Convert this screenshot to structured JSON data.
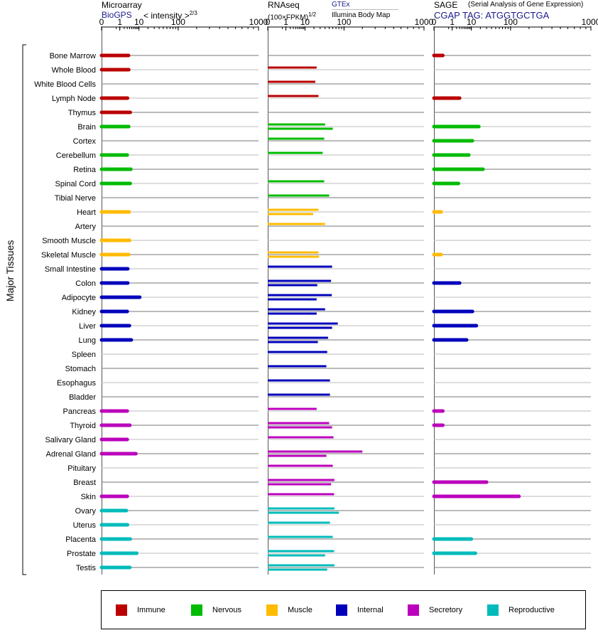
{
  "panels": {
    "microarray": {
      "title": "Microarray",
      "source": "BioGPS",
      "metric": "< intensity >",
      "metric_exp": "2/3"
    },
    "rnaseq": {
      "title": "RNAseq",
      "metric": "(100×FPKM)",
      "metric_exp": "1/2",
      "source_top": "GTEx",
      "source_bottom": "Illumina Body Map"
    },
    "sage": {
      "title": "SAGE",
      "subtitle": "(Serial Analysis of Gene Expression)",
      "tag": "CGAP TAG: ATGGTGCTGA"
    }
  },
  "y_axis_label": "Major Tissues",
  "legend": [
    {
      "label": "Immune",
      "color": "#bb0000"
    },
    {
      "label": "Nervous",
      "color": "#00bb00"
    },
    {
      "label": "Muscle",
      "color": "#ffbb00"
    },
    {
      "label": "Internal",
      "color": "#0000bb"
    },
    {
      "label": "Secretory",
      "color": "#bb00bb"
    },
    {
      "label": "Reproductive",
      "color": "#00bbbb"
    }
  ],
  "chart_data": {
    "type": "bar",
    "orientation": "horizontal",
    "x_scale": "power (shared tick values)",
    "x_ticks": [
      "0",
      "1",
      "10",
      "100",
      "1000"
    ],
    "categories": [
      "Bone Marrow",
      "Whole Blood",
      "White Blood Cells",
      "Lymph Node",
      "Thymus",
      "Brain",
      "Cortex",
      "Cerebellum",
      "Retina",
      "Spinal Cord",
      "Tibial Nerve",
      "Heart",
      "Artery",
      "Smooth Muscle",
      "Skeletal Muscle",
      "Small Intestine",
      "Colon",
      "Adipocyte",
      "Kidney",
      "Liver",
      "Lung",
      "Spleen",
      "Stomach",
      "Esophagus",
      "Bladder",
      "Pancreas",
      "Thyroid",
      "Salivary Gland",
      "Adrenal Gland",
      "Pituitary",
      "Breast",
      "Skin",
      "Ovary",
      "Uterus",
      "Placenta",
      "Prostate",
      "Testis"
    ],
    "systems": [
      "Immune",
      "Immune",
      "Immune",
      "Immune",
      "Immune",
      "Nervous",
      "Nervous",
      "Nervous",
      "Nervous",
      "Nervous",
      "Nervous",
      "Muscle",
      "Muscle",
      "Muscle",
      "Muscle",
      "Internal",
      "Internal",
      "Internal",
      "Internal",
      "Internal",
      "Internal",
      "Internal",
      "Internal",
      "Internal",
      "Internal",
      "Secretory",
      "Secretory",
      "Secretory",
      "Secretory",
      "Secretory",
      "Secretory",
      "Secretory",
      "Reproductive",
      "Reproductive",
      "Reproductive",
      "Reproductive",
      "Reproductive"
    ],
    "microarray": [
      3.5,
      3.6,
      null,
      3.1,
      4.3,
      3.6,
      null,
      3.0,
      4.6,
      4.3,
      null,
      3.8,
      null,
      4.0,
      3.6,
      3.2,
      3.2,
      10.7,
      3.0,
      3.9,
      4.8,
      null,
      null,
      null,
      null,
      3.0,
      4.1,
      3.0,
      7.6,
      null,
      null,
      3.0,
      2.7,
      3.1,
      4.3,
      8.2,
      4.1
    ],
    "rnaseq_gtex": [
      null,
      24,
      22,
      27,
      null,
      40,
      38,
      35,
      null,
      38,
      50,
      27,
      40,
      null,
      27,
      58,
      55,
      57,
      40,
      76,
      47,
      45,
      43,
      52,
      52,
      24,
      50,
      62,
      200,
      60,
      65,
      64,
      65,
      52,
      60,
      64,
      65
    ],
    "rnaseq_ibm": [
      null,
      null,
      null,
      null,
      null,
      60,
      null,
      null,
      null,
      null,
      null,
      19,
      null,
      null,
      28,
      null,
      25,
      24,
      24,
      58,
      26,
      null,
      null,
      null,
      null,
      null,
      58,
      null,
      43,
      null,
      55,
      null,
      80,
      null,
      null,
      40,
      45
    ],
    "sage": [
      0.1,
      null,
      null,
      3.0,
      null,
      18,
      11,
      8,
      24,
      2.6,
      null,
      0.05,
      null,
      null,
      0.05,
      null,
      3.0,
      null,
      11,
      15,
      6.5,
      null,
      null,
      null,
      null,
      0.1,
      0.1,
      null,
      null,
      null,
      30,
      140,
      null,
      null,
      10,
      14,
      null
    ]
  }
}
